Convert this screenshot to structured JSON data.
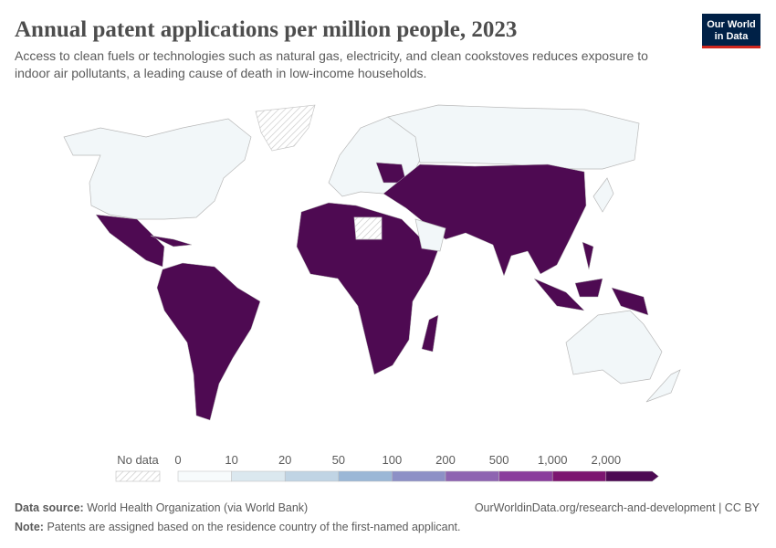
{
  "header": {
    "title": "Annual patent applications per million people, 2023",
    "subtitle_lines": [
      "Access to clean fuels or technologies such as natural gas, electricity, and clean cookstoves reduces exposure to",
      "indoor air pollutants, a leading cause of death in low-income households."
    ],
    "logo_lines": [
      "Our World",
      "in Data"
    ]
  },
  "legend": {
    "no_data": "No data",
    "ticks": [
      0,
      10,
      20,
      50,
      100,
      200,
      500,
      {
        "value": 1000,
        "label": "1,000"
      },
      {
        "value": 2000,
        "label": "2,000"
      }
    ],
    "colors": [
      "#f7fbfc",
      "#dbe8ef",
      "#c0d4e4",
      "#9bb7d6",
      "#8d90c6",
      "#8e64b1",
      "#8a3d9c",
      "#7c1570",
      "#4d0a53"
    ]
  },
  "footer": {
    "source_label": "Data source:",
    "source": "World Health Organization (via World Bank)",
    "url": "OurWorldinData.org/research-and-development | CC BY",
    "note_label": "Note:",
    "note": "Patents are assigned based on the residence country of the first-named applicant."
  }
}
